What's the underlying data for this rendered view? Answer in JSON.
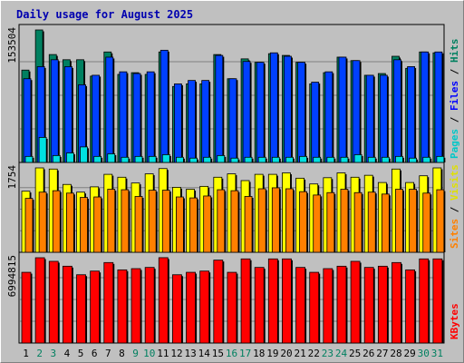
{
  "chart_data": {
    "type": "bar",
    "title": "Daily usage for August 2025",
    "categories": [
      "1",
      "2",
      "3",
      "4",
      "5",
      "6",
      "7",
      "8",
      "9",
      "10",
      "11",
      "12",
      "13",
      "14",
      "15",
      "16",
      "17",
      "18",
      "19",
      "20",
      "21",
      "22",
      "23",
      "24",
      "25",
      "26",
      "27",
      "28",
      "29",
      "30",
      "31"
    ],
    "weekend_days": [
      "2",
      "3",
      "9",
      "10",
      "16",
      "17",
      "23",
      "24",
      "30",
      "31"
    ],
    "panels": [
      {
        "id": "hits",
        "max_label": "153504",
        "max": 153504,
        "side_labels": [
          {
            "text": "Pages",
            "color": "#00c8c8"
          },
          {
            "text": " / ",
            "color": "#000000"
          },
          {
            "text": "Files",
            "color": "#0000ff"
          },
          {
            "text": " / ",
            "color": "#000000"
          },
          {
            "text": "Hits",
            "color": "#008060"
          }
        ],
        "series": [
          {
            "name": "Hits",
            "color": "#008060",
            "values": [
              107000,
              153504,
              125000,
              119000,
              119000,
              100000,
              128000,
              102000,
              104000,
              102000,
              128000,
              88000,
              91000,
              91000,
              125000,
              97000,
              120000,
              116000,
              126000,
              124000,
              116000,
              91000,
              104000,
              122000,
              118000,
              101000,
              103000,
              123000,
              109000,
              128000,
              127000
            ]
          },
          {
            "name": "Files",
            "color": "#0040ff",
            "values": [
              97000,
              111000,
              119000,
              111000,
              90000,
              101000,
              122000,
              105000,
              103000,
              105000,
              130000,
              91000,
              95000,
              95000,
              124000,
              97000,
              117000,
              116000,
              127000,
              123000,
              116000,
              93000,
              105000,
              122000,
              118000,
              101000,
              101000,
              119000,
              111000,
              128000,
              128000
            ]
          },
          {
            "name": "Pages",
            "color": "#00e0e0",
            "values": [
              7000,
              29000,
              8000,
              11000,
              18000,
              7000,
              10000,
              6000,
              7000,
              7000,
              9000,
              6000,
              5000,
              6000,
              8000,
              5000,
              6000,
              6000,
              6000,
              6000,
              7000,
              6000,
              6000,
              6000,
              9000,
              6000,
              6000,
              7000,
              5000,
              6000,
              7000
            ]
          }
        ]
      },
      {
        "id": "visits",
        "max_label": "1754",
        "max": 1754,
        "side_labels": [
          {
            "text": "Sites",
            "color": "#ff8000"
          },
          {
            "text": " / ",
            "color": "#000000"
          },
          {
            "text": "Visits",
            "color": "#e0e000"
          }
        ],
        "series": [
          {
            "name": "Visits",
            "color": "#ffff00",
            "values": [
              1270,
              1754,
              1730,
              1410,
              1250,
              1360,
              1620,
              1560,
              1440,
              1630,
              1740,
              1350,
              1310,
              1370,
              1560,
              1630,
              1490,
              1620,
              1620,
              1650,
              1540,
              1420,
              1550,
              1650,
              1560,
              1600,
              1450,
              1730,
              1450,
              1590,
              1754
            ]
          },
          {
            "name": "Sites",
            "color": "#ff8000",
            "values": [
              1120,
              1250,
              1280,
              1230,
              1140,
              1150,
              1310,
              1300,
              1160,
              1290,
              1290,
              1150,
              1130,
              1170,
              1300,
              1280,
              1160,
              1320,
              1340,
              1320,
              1260,
              1190,
              1240,
              1310,
              1240,
              1250,
              1210,
              1310,
              1310,
              1230,
              1300
            ]
          }
        ]
      },
      {
        "id": "kbytes",
        "max_label": "6994815",
        "max": 6994815,
        "side_labels": [
          {
            "text": "KBytes",
            "color": "#ff0000"
          }
        ],
        "series": [
          {
            "name": "KBytes",
            "color": "#ff0000",
            "values": [
              5800000,
              6994815,
              6700000,
              6300000,
              5600000,
              5900000,
              6600000,
              6000000,
              6100000,
              6200000,
              7000000,
              5600000,
              5800000,
              5900000,
              6800000,
              5800000,
              6900000,
              6200000,
              6900000,
              6900000,
              6200000,
              5800000,
              6100000,
              6300000,
              6700000,
              6200000,
              6300000,
              6600000,
              6000000,
              6900000,
              6900000
            ]
          }
        ]
      }
    ]
  }
}
